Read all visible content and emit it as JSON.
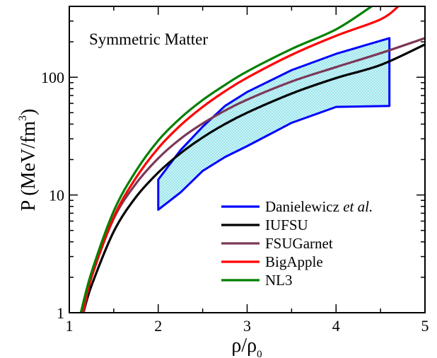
{
  "chart_data": {
    "type": "line",
    "title": "",
    "annotation": "Symmetric Matter",
    "xlabel": "ρ/ρ",
    "xlabel_sub": "0",
    "ylabel": "P (MeV/fm",
    "ylabel_sup": "3",
    "ylabel_close": ")",
    "xlim": [
      1,
      5
    ],
    "ylim": [
      1,
      400
    ],
    "yscale": "log",
    "grid": false,
    "legend_position": "bottom-right",
    "x_ticks": [
      1,
      2,
      3,
      4,
      5
    ],
    "x_tick_labels": [
      "1",
      "2",
      "3",
      "4",
      "5"
    ],
    "y_ticks": [
      1,
      10,
      100
    ],
    "y_tick_labels": [
      "1",
      "10",
      "100"
    ],
    "series": [
      {
        "name": "Danielewicz et al.",
        "name_plain": "Danielewicz ",
        "name_italic": "et al.",
        "kind": "band",
        "color": "#0000ff",
        "fill": "#b8f0f4",
        "upper": {
          "x": [
            2.0,
            2.25,
            2.5,
            2.75,
            3.0,
            3.5,
            4.0,
            4.6
          ],
          "y": [
            13.5,
            24,
            38,
            57,
            75,
            115,
            158,
            215
          ]
        },
        "lower": {
          "x": [
            2.0,
            2.25,
            2.5,
            2.75,
            3.0,
            3.5,
            4.0,
            4.6
          ],
          "y": [
            7.5,
            10.5,
            16,
            21,
            26,
            41,
            56,
            57
          ]
        }
      },
      {
        "name": "IUFSU",
        "color": "#000000",
        "x": [
          1.16,
          1.25,
          1.5,
          1.75,
          2.0,
          2.25,
          2.5,
          2.75,
          3.0,
          3.5,
          4.0,
          4.5,
          5.0
        ],
        "y": [
          1.0,
          1.7,
          4.9,
          9.6,
          15.5,
          22.6,
          30.8,
          40.0,
          50.0,
          72.7,
          98.5,
          127,
          190
        ]
      },
      {
        "name": "FSUGarnet",
        "color": "#7b3858",
        "x": [
          1.16,
          1.25,
          1.5,
          1.75,
          2.0,
          2.25,
          2.5,
          2.75,
          3.0,
          3.5,
          4.0,
          4.5,
          5.0
        ],
        "y": [
          1.0,
          2.0,
          6.3,
          12.5,
          20.5,
          30.0,
          40.5,
          52.0,
          64.5,
          92.0,
          122,
          160,
          215
        ]
      },
      {
        "name": "BigApple",
        "color": "#ff0000",
        "x": [
          1.15,
          1.25,
          1.5,
          1.75,
          2.0,
          2.25,
          2.5,
          2.75,
          3.0,
          3.5,
          4.0,
          4.5,
          4.7
        ],
        "y": [
          1.0,
          2.0,
          6.5,
          14.0,
          25.0,
          39.0,
          56.0,
          76.0,
          99.0,
          155,
          225,
          310,
          400
        ]
      },
      {
        "name": "NL3",
        "color": "#008000",
        "x": [
          1.13,
          1.25,
          1.5,
          1.75,
          2.0,
          2.25,
          2.5,
          2.75,
          3.0,
          3.5,
          4.0,
          4.4
        ],
        "y": [
          1.0,
          2.2,
          7.3,
          16.0,
          29.0,
          45.0,
          64.0,
          86.0,
          112,
          174,
          255,
          400
        ]
      }
    ]
  }
}
